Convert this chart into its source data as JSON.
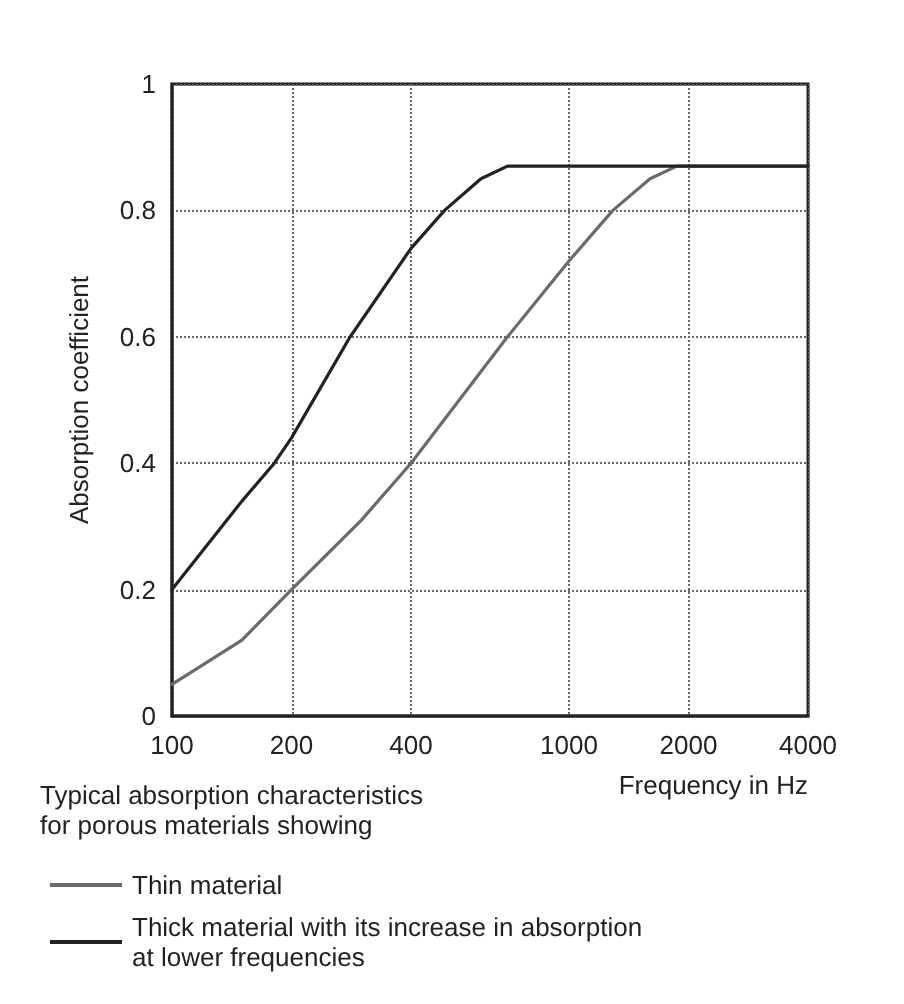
{
  "chart_data": {
    "type": "line",
    "xlabel": "Frequency in Hz",
    "ylabel": "Absorption coefficient",
    "annotations": [
      "Typical absorption characteristics\nfor porous materials showing"
    ],
    "log": "x",
    "xlim": [
      100,
      4000
    ],
    "xticks": [
      100,
      200,
      400,
      1000,
      2000,
      4000
    ],
    "ylim": [
      0,
      1.0
    ],
    "yticks": [
      0,
      0.2,
      0.4,
      0.6,
      0.8,
      1.0
    ],
    "grid": true,
    "legend": "bottom left",
    "marker": "none",
    "line_style": "solid",
    "series": [
      {
        "name": "Thin material",
        "color": "#6a6a6a",
        "x": [
          100,
          150,
          200,
          300,
          400,
          700,
          1000,
          1290,
          1600,
          1870,
          2000,
          4000
        ],
        "values": [
          0.05,
          0.12,
          0.2,
          0.31,
          0.4,
          0.6,
          0.72,
          0.8,
          0.85,
          0.87,
          0.87,
          0.87
        ]
      },
      {
        "name": "Thick material with its increase in absorption\nat lower frequencies",
        "color": "#222222",
        "x": [
          100,
          150,
          181,
          200,
          281,
          400,
          486,
          600,
          700,
          1000,
          2000,
          4000
        ],
        "values": [
          0.2,
          0.34,
          0.4,
          0.44,
          0.6,
          0.74,
          0.8,
          0.85,
          0.87,
          0.87,
          0.87,
          0.87
        ]
      }
    ]
  }
}
